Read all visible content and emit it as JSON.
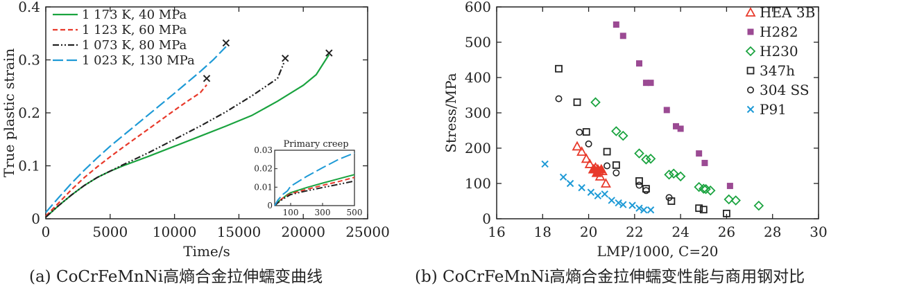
{
  "captions": {
    "a": "(a) CoCrFeMnNi高熵合金拉伸蠕变曲线",
    "b": "(b) CoCrFeMnNi高熵合金拉伸蠕变性能与商用钢对比"
  },
  "chart_data": [
    {
      "type": "line",
      "xlabel": "Time/s",
      "ylabel": "True plastic strain",
      "xlim": [
        0,
        25000
      ],
      "ylim": [
        0,
        0.4
      ],
      "xticks": [
        0,
        5000,
        10000,
        15000,
        20000,
        25000
      ],
      "yticks": [
        0,
        0.1,
        0.2,
        0.3,
        0.4
      ],
      "grid": false,
      "legend_position": "top-left",
      "series": [
        {
          "name": "1 173 K, 40 MPa",
          "color": "#1aa33f",
          "dash": "solid",
          "points": [
            [
              0,
              0.003
            ],
            [
              1000,
              0.025
            ],
            [
              2000,
              0.045
            ],
            [
              3000,
              0.063
            ],
            [
              4000,
              0.078
            ],
            [
              5000,
              0.09
            ],
            [
              6000,
              0.1
            ],
            [
              8000,
              0.118
            ],
            [
              10000,
              0.137
            ],
            [
              12000,
              0.156
            ],
            [
              14000,
              0.175
            ],
            [
              16000,
              0.195
            ],
            [
              18000,
              0.222
            ],
            [
              20000,
              0.252
            ],
            [
              21000,
              0.272
            ],
            [
              22000,
              0.31
            ]
          ],
          "rupture": [
            22000,
            0.313
          ]
        },
        {
          "name": "1 123 K, 60 MPa",
          "color": "#e8392a",
          "dash": "short",
          "points": [
            [
              0,
              0.005
            ],
            [
              1000,
              0.03
            ],
            [
              2000,
              0.055
            ],
            [
              3000,
              0.078
            ],
            [
              4000,
              0.098
            ],
            [
              5000,
              0.117
            ],
            [
              6000,
              0.135
            ],
            [
              8000,
              0.17
            ],
            [
              10000,
              0.205
            ],
            [
              11000,
              0.222
            ],
            [
              12000,
              0.238
            ],
            [
              12500,
              0.253
            ]
          ],
          "rupture": [
            12500,
            0.265
          ]
        },
        {
          "name": "1 073 K, 80 MPa",
          "color": "#222222",
          "dash": "dashdotdot",
          "points": [
            [
              0,
              0.003
            ],
            [
              1000,
              0.025
            ],
            [
              2000,
              0.045
            ],
            [
              3000,
              0.063
            ],
            [
              4000,
              0.078
            ],
            [
              5000,
              0.09
            ],
            [
              6000,
              0.102
            ],
            [
              8000,
              0.125
            ],
            [
              10000,
              0.15
            ],
            [
              12000,
              0.175
            ],
            [
              14000,
              0.202
            ],
            [
              16000,
              0.232
            ],
            [
              18000,
              0.265
            ],
            [
              18500,
              0.295
            ]
          ],
          "rupture": [
            18600,
            0.303
          ]
        },
        {
          "name": "1 023 K, 130 MPa",
          "color": "#1e9ad6",
          "dash": "long",
          "points": [
            [
              0,
              0.012
            ],
            [
              1000,
              0.04
            ],
            [
              2000,
              0.067
            ],
            [
              3000,
              0.092
            ],
            [
              4000,
              0.115
            ],
            [
              5000,
              0.137
            ],
            [
              6000,
              0.157
            ],
            [
              8000,
              0.197
            ],
            [
              10000,
              0.237
            ],
            [
              12000,
              0.278
            ],
            [
              13000,
              0.3
            ],
            [
              14000,
              0.325
            ]
          ],
          "rupture": [
            14000,
            0.332
          ]
        }
      ],
      "inset": {
        "title": "Primary creep",
        "xlim": [
          0,
          500
        ],
        "ylim": [
          0,
          0.03
        ],
        "xticks": [
          100,
          300,
          500
        ],
        "yticks": [
          0,
          0.01,
          0.02,
          0.03
        ],
        "series": [
          {
            "name": "1 173 K, 40 MPa",
            "points": [
              [
                0,
                0.0
              ],
              [
                20,
                0.002
              ],
              [
                50,
                0.004
              ],
              [
                80,
                0.006
              ],
              [
                100,
                0.007
              ],
              [
                200,
                0.0098
              ],
              [
                300,
                0.0122
              ],
              [
                400,
                0.0145
              ],
              [
                500,
                0.0168
              ]
            ]
          },
          {
            "name": "1 123 K, 60 MPa",
            "points": [
              [
                0,
                0.0
              ],
              [
                20,
                0.002
              ],
              [
                50,
                0.004
              ],
              [
                80,
                0.0055
              ],
              [
                100,
                0.0065
              ],
              [
                200,
                0.0088
              ],
              [
                300,
                0.011
              ],
              [
                400,
                0.013
              ],
              [
                500,
                0.0153
              ]
            ]
          },
          {
            "name": "1 073 K, 80 MPa",
            "points": [
              [
                0,
                0.0
              ],
              [
                20,
                0.0015
              ],
              [
                50,
                0.0035
              ],
              [
                80,
                0.005
              ],
              [
                100,
                0.006
              ],
              [
                200,
                0.008
              ],
              [
                300,
                0.0098
              ],
              [
                400,
                0.0115
              ],
              [
                500,
                0.0133
              ]
            ]
          },
          {
            "name": "1 023 K, 130 MPa",
            "points": [
              [
                0,
                0.0
              ],
              [
                20,
                0.003
              ],
              [
                50,
                0.006
              ],
              [
                80,
                0.008
              ],
              [
                100,
                0.0105
              ],
              [
                200,
                0.0158
              ],
              [
                300,
                0.0205
              ],
              [
                400,
                0.025
              ],
              [
                500,
                0.0285
              ]
            ]
          }
        ]
      }
    },
    {
      "type": "scatter",
      "xlabel": "LMP/1000, C=20",
      "ylabel": "Stress/MPa",
      "xlim": [
        16,
        30
      ],
      "ylim": [
        0,
        600
      ],
      "xticks": [
        16,
        18,
        20,
        22,
        24,
        26,
        28,
        30
      ],
      "yticks": [
        0,
        100,
        200,
        300,
        400,
        500,
        600
      ],
      "grid": false,
      "legend_position": "top-right",
      "series": [
        {
          "name": "HEA 3B",
          "marker": "triangle",
          "color": "#e8392a",
          "points": [
            [
              19.5,
              205
            ],
            [
              19.7,
              190
            ],
            [
              19.9,
              170
            ],
            [
              20.05,
              155
            ],
            [
              20.2,
              140
            ],
            [
              20.3,
              145
            ],
            [
              20.45,
              135
            ],
            [
              20.5,
              120
            ],
            [
              20.6,
              135
            ],
            [
              20.75,
              100
            ]
          ],
          "filled_points": [
            [
              20.25,
              140
            ],
            [
              20.4,
              140
            ],
            [
              20.55,
              140
            ],
            [
              20.35,
              130
            ]
          ]
        },
        {
          "name": "H282",
          "marker": "square-filled",
          "color": "#9b4a93",
          "points": [
            [
              21.2,
              550
            ],
            [
              21.5,
              518
            ],
            [
              22.2,
              440
            ],
            [
              22.5,
              385
            ],
            [
              22.7,
              385
            ],
            [
              23.4,
              308
            ],
            [
              23.8,
              262
            ],
            [
              24.0,
              255
            ],
            [
              24.8,
              185
            ],
            [
              25.05,
              158
            ],
            [
              26.15,
              93
            ]
          ]
        },
        {
          "name": "H230",
          "marker": "diamond",
          "color": "#1aa33f",
          "points": [
            [
              20.3,
              330
            ],
            [
              21.2,
              248
            ],
            [
              21.5,
              235
            ],
            [
              22.2,
              185
            ],
            [
              22.5,
              168
            ],
            [
              22.7,
              170
            ],
            [
              23.5,
              125
            ],
            [
              23.7,
              128
            ],
            [
              24.0,
              120
            ],
            [
              24.8,
              90
            ],
            [
              25.0,
              85
            ],
            [
              25.1,
              84
            ],
            [
              25.3,
              80
            ],
            [
              26.1,
              55
            ],
            [
              26.4,
              52
            ],
            [
              27.4,
              37
            ]
          ]
        },
        {
          "name": "347h",
          "marker": "square-open",
          "color": "#222222",
          "points": [
            [
              18.7,
              425
            ],
            [
              19.5,
              330
            ],
            [
              19.9,
              246
            ],
            [
              20.8,
              190
            ],
            [
              21.2,
              152
            ],
            [
              22.2,
              107
            ],
            [
              22.5,
              85
            ],
            [
              23.6,
              50
            ],
            [
              24.8,
              30
            ],
            [
              25.0,
              26
            ],
            [
              26.0,
              15
            ]
          ]
        },
        {
          "name": "304 SS",
          "marker": "circle-open",
          "color": "#222222",
          "points": [
            [
              18.7,
              340
            ],
            [
              19.6,
              245
            ],
            [
              20.0,
              212
            ],
            [
              20.8,
              150
            ],
            [
              21.2,
              130
            ],
            [
              22.2,
              95
            ],
            [
              22.5,
              80
            ],
            [
              23.5,
              60
            ]
          ]
        },
        {
          "name": "P91",
          "marker": "x",
          "color": "#1e9ad6",
          "points": [
            [
              18.1,
              155
            ],
            [
              18.9,
              118
            ],
            [
              19.2,
              100
            ],
            [
              19.7,
              88
            ],
            [
              20.1,
              75
            ],
            [
              20.4,
              65
            ],
            [
              20.7,
              70
            ],
            [
              21.0,
              52
            ],
            [
              21.3,
              45
            ],
            [
              21.5,
              40
            ],
            [
              21.9,
              38
            ],
            [
              22.2,
              30
            ],
            [
              22.4,
              25
            ],
            [
              22.7,
              25
            ]
          ]
        }
      ]
    }
  ]
}
